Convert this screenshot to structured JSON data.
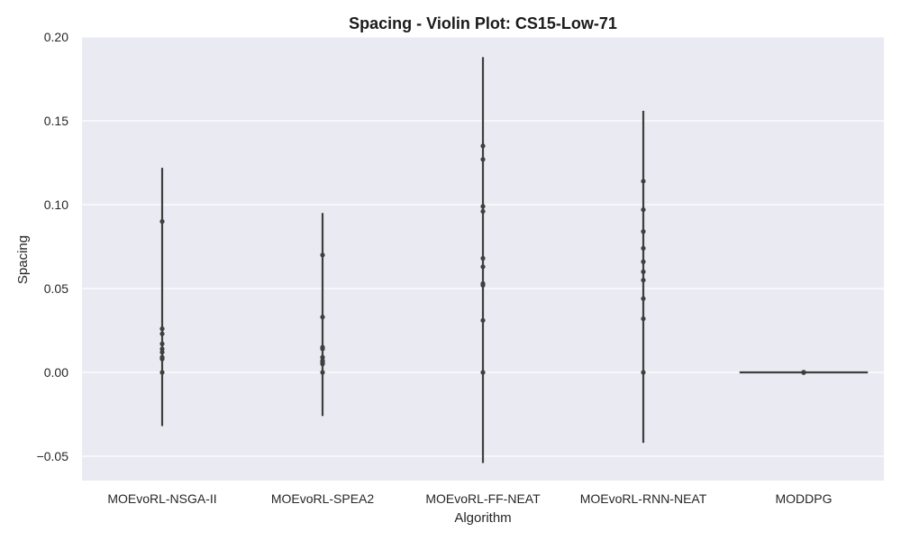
{
  "chart_data": {
    "type": "violin",
    "title": "Spacing - Violin Plot: CS15-Low-71",
    "xlabel": "Algorithm",
    "ylabel": "Spacing",
    "ylim": [
      -0.065,
      0.2
    ],
    "yticks": [
      -0.05,
      0.0,
      0.05,
      0.1,
      0.15,
      0.2
    ],
    "ytick_labels": [
      "−0.05",
      "0.00",
      "0.05",
      "0.10",
      "0.15",
      "0.20"
    ],
    "grid": true,
    "background": "#eaeaf2",
    "grid_color": "#ffffff",
    "mark_color": "#3f3f3f",
    "categories": [
      "MOEvoRL-NSGA-II",
      "MOEvoRL-SPEA2",
      "MOEvoRL-FF-NEAT",
      "MOEvoRL-RNN-NEAT",
      "MODDPG"
    ],
    "series": [
      {
        "category": "MOEvoRL-NSGA-II",
        "range": [
          -0.032,
          0.122
        ],
        "points": [
          0.09,
          0.026,
          0.023,
          0.017,
          0.014,
          0.012,
          0.009,
          0.008,
          0.0
        ]
      },
      {
        "category": "MOEvoRL-SPEA2",
        "range": [
          -0.026,
          0.095
        ],
        "points": [
          0.07,
          0.033,
          0.015,
          0.014,
          0.009,
          0.007,
          0.006,
          0.005,
          0.0
        ]
      },
      {
        "category": "MOEvoRL-FF-NEAT",
        "range": [
          -0.054,
          0.188
        ],
        "points": [
          0.135,
          0.127,
          0.099,
          0.096,
          0.068,
          0.063,
          0.053,
          0.052,
          0.031,
          0.0
        ]
      },
      {
        "category": "MOEvoRL-RNN-NEAT",
        "range": [
          -0.042,
          0.156
        ],
        "points": [
          0.114,
          0.097,
          0.084,
          0.074,
          0.066,
          0.06,
          0.055,
          0.044,
          0.032,
          0.0
        ]
      },
      {
        "category": "MODDPG",
        "range": [
          0.0,
          0.0
        ],
        "violin_width_ratio": 0.8,
        "points": [
          0.0,
          0.0,
          0.0,
          0.0,
          0.0,
          0.0,
          0.0,
          0.0,
          0.0,
          0.0
        ]
      }
    ]
  }
}
